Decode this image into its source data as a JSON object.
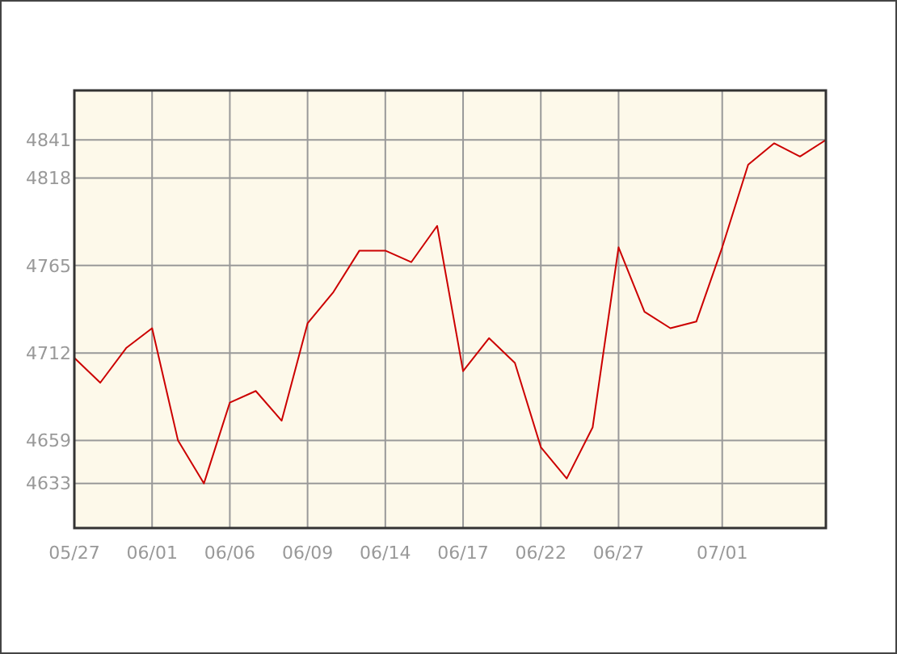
{
  "chart_data": {
    "type": "line",
    "categories": [
      "05/27",
      null,
      null,
      "06/01",
      null,
      null,
      "06/06",
      null,
      null,
      "06/09",
      null,
      null,
      "06/14",
      null,
      null,
      "06/17",
      null,
      null,
      "06/22",
      null,
      null,
      "06/27",
      null,
      null,
      null,
      "07/01",
      null,
      null,
      null,
      null
    ],
    "series": [
      {
        "color": "#cc0000",
        "values": [
          4709,
          4694,
          4715,
          4727,
          4659,
          4633,
          4682,
          4689,
          4671,
          4730,
          4749,
          4774,
          4774,
          4767,
          4789,
          4701,
          4721,
          4706,
          4655,
          4636,
          4667,
          4776,
          4737,
          4727,
          4731,
          4776,
          4826,
          4839,
          4831,
          4841
        ]
      }
    ],
    "ylim": [
      4606,
      4871
    ],
    "yticks": [
      4633,
      4659,
      4712,
      4765,
      4818,
      4841
    ],
    "grid": true,
    "marker": "none",
    "line_style": "solid"
  }
}
